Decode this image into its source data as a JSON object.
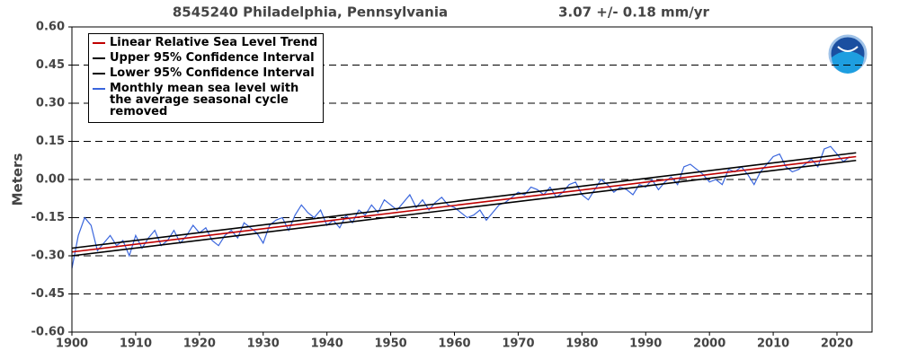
{
  "chart_data": {
    "type": "line",
    "title": "8545240 Philadelphia, Pennsylvania",
    "subtitle": "3.07 +/-  0.18 mm/yr",
    "y_label": "Meters",
    "xlim": [
      1900,
      2025.5
    ],
    "ylim": [
      -0.6,
      0.6
    ],
    "xticks": [
      1900,
      1910,
      1920,
      1930,
      1940,
      1950,
      1960,
      1970,
      1980,
      1990,
      2000,
      2010,
      2020
    ],
    "yticks": [
      {
        "value": -0.6,
        "label": "-0.60"
      },
      {
        "value": -0.45,
        "label": "-0.45"
      },
      {
        "value": -0.3,
        "label": "-0.30"
      },
      {
        "value": -0.15,
        "label": "-0.15"
      },
      {
        "value": 0,
        "label": "0.00"
      },
      {
        "value": 0.15,
        "label": "0.15"
      },
      {
        "value": 0.3,
        "label": "0.30"
      },
      {
        "value": 0.45,
        "label": "0.45"
      },
      {
        "value": 0.6,
        "label": "0.60"
      }
    ],
    "grid": true,
    "series": [
      {
        "name": "Linear Relative Sea Level Trend",
        "color": "#c00000",
        "x": [
          1900,
          2023
        ],
        "values": [
          -0.285,
          0.09
        ]
      },
      {
        "name": "Upper 95% Confidence Interval",
        "color": "#000000",
        "x": [
          1900,
          2023
        ],
        "values": [
          -0.27,
          0.105
        ]
      },
      {
        "name": "Lower 95% Confidence Interval",
        "color": "#000000",
        "x": [
          1900,
          2023
        ],
        "values": [
          -0.3,
          0.075
        ]
      },
      {
        "name": "Monthly mean sea level with the average seasonal cycle removed",
        "color": "#3a66dd",
        "x": [
          1900,
          1901,
          1902,
          1903,
          1904,
          1905,
          1906,
          1907,
          1908,
          1909,
          1910,
          1911,
          1912,
          1913,
          1914,
          1915,
          1916,
          1917,
          1918,
          1919,
          1920,
          1921,
          1922,
          1923,
          1924,
          1925,
          1926,
          1927,
          1928,
          1929,
          1930,
          1931,
          1932,
          1933,
          1934,
          1935,
          1936,
          1937,
          1938,
          1939,
          1940,
          1941,
          1942,
          1943,
          1944,
          1945,
          1946,
          1947,
          1948,
          1949,
          1950,
          1951,
          1952,
          1953,
          1954,
          1955,
          1956,
          1957,
          1958,
          1959,
          1960,
          1961,
          1962,
          1963,
          1964,
          1965,
          1966,
          1967,
          1968,
          1969,
          1970,
          1971,
          1972,
          1973,
          1974,
          1975,
          1976,
          1977,
          1978,
          1979,
          1980,
          1981,
          1982,
          1983,
          1984,
          1985,
          1986,
          1987,
          1988,
          1989,
          1990,
          1991,
          1992,
          1993,
          1994,
          1995,
          1996,
          1997,
          1998,
          1999,
          2000,
          2001,
          2002,
          2003,
          2004,
          2005,
          2006,
          2007,
          2008,
          2009,
          2010,
          2011,
          2012,
          2013,
          2014,
          2015,
          2016,
          2017,
          2018,
          2019,
          2020,
          2021,
          2022
        ],
        "values": [
          -0.35,
          -0.22,
          -0.15,
          -0.18,
          -0.28,
          -0.25,
          -0.22,
          -0.26,
          -0.24,
          -0.3,
          -0.22,
          -0.27,
          -0.23,
          -0.2,
          -0.26,
          -0.24,
          -0.2,
          -0.25,
          -0.22,
          -0.18,
          -0.21,
          -0.19,
          -0.24,
          -0.26,
          -0.22,
          -0.2,
          -0.23,
          -0.17,
          -0.19,
          -0.21,
          -0.25,
          -0.18,
          -0.16,
          -0.15,
          -0.2,
          -0.14,
          -0.1,
          -0.13,
          -0.15,
          -0.12,
          -0.18,
          -0.16,
          -0.19,
          -0.14,
          -0.17,
          -0.12,
          -0.14,
          -0.1,
          -0.13,
          -0.08,
          -0.1,
          -0.12,
          -0.09,
          -0.06,
          -0.11,
          -0.08,
          -0.12,
          -0.09,
          -0.07,
          -0.1,
          -0.11,
          -0.13,
          -0.15,
          -0.14,
          -0.12,
          -0.16,
          -0.13,
          -0.1,
          -0.09,
          -0.07,
          -0.05,
          -0.06,
          -0.03,
          -0.04,
          -0.06,
          -0.03,
          -0.07,
          -0.05,
          -0.02,
          -0.01,
          -0.06,
          -0.08,
          -0.04,
          0.0,
          -0.02,
          -0.05,
          -0.03,
          -0.04,
          -0.06,
          -0.02,
          -0.03,
          0.0,
          -0.04,
          -0.01,
          0.01,
          -0.02,
          0.05,
          0.06,
          0.04,
          0.02,
          -0.01,
          0.0,
          -0.02,
          0.04,
          0.03,
          0.05,
          0.02,
          -0.02,
          0.03,
          0.06,
          0.09,
          0.1,
          0.05,
          0.03,
          0.04,
          0.06,
          0.08,
          0.05,
          0.12,
          0.13,
          0.1,
          0.07,
          0.09
        ]
      }
    ]
  }
}
